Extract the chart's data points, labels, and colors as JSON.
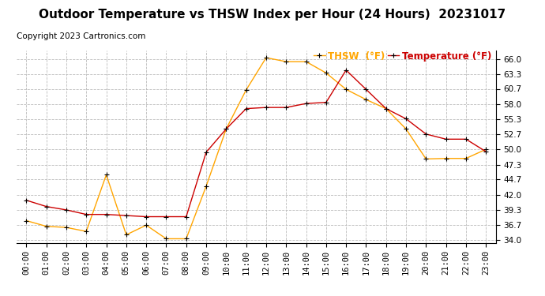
{
  "title": "Outdoor Temperature vs THSW Index per Hour (24 Hours)  20231017",
  "copyright": "Copyright 2023 Cartronics.com",
  "legend_thsw": "THSW  (°F)",
  "legend_temp": "Temperature (°F)",
  "hours": [
    "00:00",
    "01:00",
    "02:00",
    "03:00",
    "04:00",
    "05:00",
    "06:00",
    "07:00",
    "08:00",
    "09:00",
    "10:00",
    "11:00",
    "12:00",
    "13:00",
    "14:00",
    "15:00",
    "16:00",
    "17:00",
    "18:00",
    "19:00",
    "20:00",
    "21:00",
    "22:00",
    "23:00"
  ],
  "temperature": [
    41.0,
    39.9,
    39.3,
    38.5,
    38.5,
    38.3,
    38.1,
    38.1,
    38.1,
    49.5,
    53.6,
    57.2,
    57.4,
    57.4,
    58.1,
    58.3,
    64.0,
    60.6,
    57.2,
    55.4,
    52.7,
    51.8,
    51.8,
    49.6
  ],
  "thsw": [
    37.4,
    36.4,
    36.2,
    35.5,
    45.5,
    34.9,
    36.6,
    34.2,
    34.2,
    43.5,
    53.6,
    60.5,
    66.2,
    65.5,
    65.5,
    63.5,
    60.6,
    58.8,
    57.2,
    53.6,
    48.3,
    48.4,
    48.4,
    50.0
  ],
  "thsw_color": "#FFA500",
  "temp_color": "#CC0000",
  "marker_color": "#000000",
  "ytick_labels": [
    "34.0",
    "36.7",
    "39.3",
    "42.0",
    "44.7",
    "47.3",
    "50.0",
    "52.7",
    "55.3",
    "58.0",
    "60.7",
    "63.3",
    "66.0"
  ],
  "ytick_values": [
    34.0,
    36.7,
    39.3,
    42.0,
    44.7,
    47.3,
    50.0,
    52.7,
    55.3,
    58.0,
    60.7,
    63.3,
    66.0
  ],
  "ylim": [
    33.5,
    67.5
  ],
  "background_color": "#ffffff",
  "grid_color": "#bbbbbb",
  "title_fontsize": 11,
  "copyright_fontsize": 7.5,
  "legend_fontsize": 8.5,
  "tick_fontsize": 7.5
}
